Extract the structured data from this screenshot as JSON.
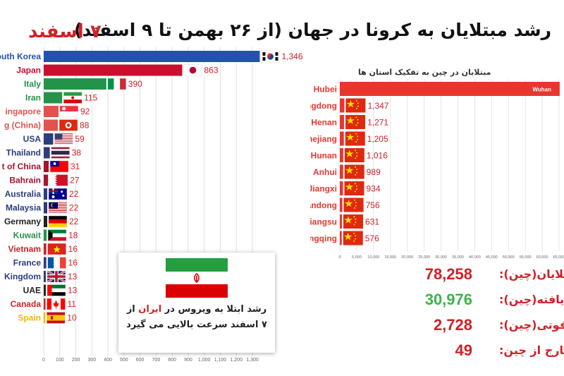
{
  "header": {
    "title": "رشد مبتلایان به کرونا در جهان (از ۲۶ بهمن تا ۹ اسفند)",
    "date": "۷ اسفند"
  },
  "chart_data": [
    {
      "type": "bar",
      "orientation": "horizontal",
      "categories": [
        "South Korea",
        "Japan",
        "Italy",
        "Iran",
        "Singapore",
        "Hong Kong (China)",
        "USA",
        "Thailand",
        "Republic of China",
        "Bahrain",
        "Australia",
        "Malaysia",
        "Germany",
        "Kuwait",
        "Vietnam",
        "France",
        "United Kingdom",
        "UAE",
        "Canada",
        "Spain"
      ],
      "display_labels": [
        "outh Korea",
        "Japan",
        "Italy",
        "Iran",
        "ingapore",
        "g (China)",
        "USA",
        "Thailand",
        "t of China",
        "Bahrain",
        "Australia",
        "Malaysia",
        "Germany",
        "Kuwait",
        "Vietnam",
        "France",
        "Kingdom",
        "UAE",
        "Canada",
        "Spain"
      ],
      "values": [
        1346,
        863,
        390,
        115,
        92,
        88,
        59,
        38,
        31,
        27,
        22,
        22,
        22,
        18,
        16,
        16,
        13,
        13,
        11,
        10
      ],
      "value_labels": [
        "1,346",
        "863",
        "390",
        "115",
        "92",
        "88",
        "59",
        "38",
        "31",
        "27",
        "22",
        "22",
        "22",
        "18",
        "16",
        "16",
        "13",
        "13",
        "11",
        "10"
      ],
      "colors": [
        "#2450b4",
        "#c8102e",
        "#24934a",
        "#24934a",
        "#e0534f",
        "#e0534f",
        "#2b3d7d",
        "#2b3d7d",
        "#a5132d",
        "#a5132d",
        "#2b3d7d",
        "#2b3d7d",
        "#222222",
        "#24934a",
        "#d21f26",
        "#2b3d7d",
        "#2b3d7d",
        "#222222",
        "#d21f26",
        "#f2b705"
      ],
      "flags": [
        "south-korea-flag",
        "japan-flag",
        "italy-flag",
        "iran-flag",
        "singapore-flag",
        "hong-kong-flag",
        "usa-flag",
        "thailand-flag",
        "taiwan-flag",
        "bahrain-flag",
        "australia-flag",
        "malaysia-flag",
        "germany-flag",
        "kuwait-flag",
        "vietnam-flag",
        "france-flag",
        "uk-flag",
        "uae-flag",
        "canada-flag",
        "spain-flag"
      ],
      "xlim": [
        0,
        1300
      ],
      "xticks": [
        "0",
        "100",
        "200",
        "300",
        "400",
        "500",
        "600",
        "700",
        "800",
        "900",
        "1,000",
        "1,100",
        "1,200",
        "1,300"
      ]
    },
    {
      "type": "bar",
      "orientation": "horizontal",
      "title": "مبتلایان در چین به تفکیک استان ها",
      "categories": [
        "Hubei",
        "Guangdong",
        "Henan",
        "Zhejiang",
        "Hunan",
        "Anhui",
        "Jiangxi",
        "Shandong",
        "Jiangsu",
        "Chongqing"
      ],
      "values": [
        65187,
        1347,
        1271,
        1205,
        1016,
        989,
        934,
        756,
        631,
        576
      ],
      "value_labels": [
        "",
        "1,347",
        "1,271",
        "1,205",
        "1,016",
        "989",
        "934",
        "756",
        "631",
        "576"
      ],
      "inner_label": "Wuhan",
      "bar_color": "#e8362f",
      "xlim": [
        0,
        65000
      ],
      "xticks": [
        "0",
        "5,000",
        "10,000",
        "15,000",
        "20,000",
        "25,000",
        "30,000",
        "35,000",
        "40,000",
        "45,000",
        "50,000",
        "55,000",
        "60,000",
        "65,000"
      ]
    }
  ],
  "stats": [
    {
      "label": "مبتلایان(چین):",
      "value": "78,258",
      "color": "#d21f26"
    },
    {
      "label": "بهبود یافته(چین):",
      "value": "30,976",
      "color": "#3ab54a"
    },
    {
      "label": "فوتی(چین):",
      "value": "2,728",
      "color": "#d21f26"
    },
    {
      "label": "مبتلایان خارج از چین:",
      "value": "49",
      "color": "#d21f26"
    }
  ],
  "iran_note": {
    "before": "رشد ابتلا به ویروس در ",
    "highlight": "ایران",
    "after": " از ۷ اسفند سرعت بالایی می گیرد",
    "flag_icon": "iran-flag"
  }
}
